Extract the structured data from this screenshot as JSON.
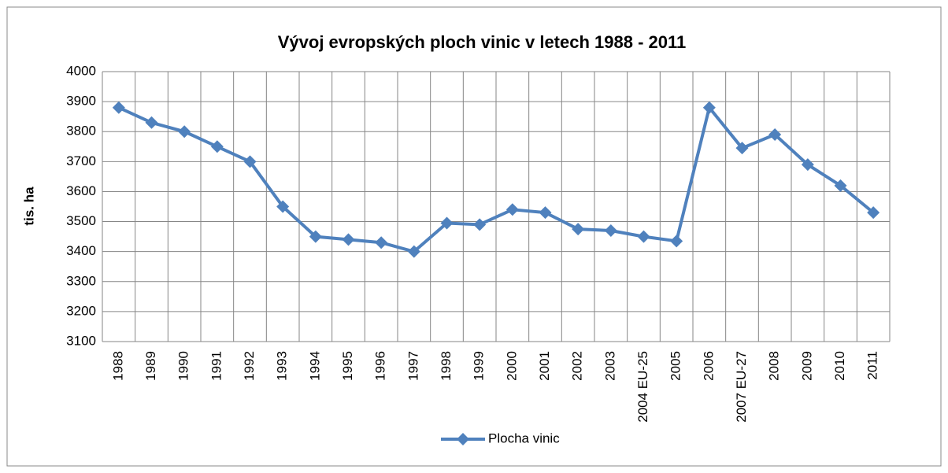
{
  "chart_data": {
    "type": "line",
    "title": "Vývoj evropských ploch vinic v letech 1988 - 2011",
    "y_label": "tis. ha",
    "categories": [
      "1988",
      "1989",
      "1990",
      "1991",
      "1992",
      "1993",
      "1994",
      "1995",
      "1996",
      "1997",
      "1998",
      "1999",
      "2000",
      "2001",
      "2002",
      "2003",
      "2004 EU-25",
      "2005",
      "2006",
      "2007 EU-27",
      "2008",
      "2009",
      "2010",
      "2011"
    ],
    "series": [
      {
        "name": "Plocha vinic",
        "color": "#4f81bd",
        "values": [
          3880,
          3830,
          3800,
          3750,
          3700,
          3550,
          3450,
          3440,
          3430,
          3400,
          3495,
          3490,
          3540,
          3530,
          3475,
          3470,
          3450,
          3435,
          3880,
          3745,
          3790,
          3690,
          3620,
          3530
        ]
      }
    ],
    "ylim": [
      3100,
      4000
    ],
    "yticks": [
      3100,
      3200,
      3300,
      3400,
      3500,
      3600,
      3700,
      3800,
      3900,
      4000
    ],
    "grid": true,
    "legend": "bottom"
  }
}
